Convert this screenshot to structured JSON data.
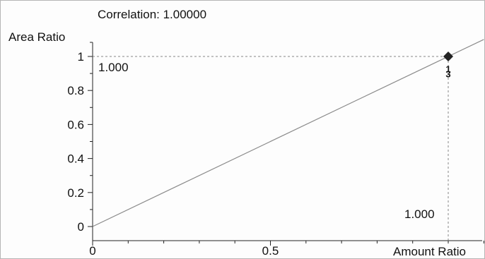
{
  "chart_data": {
    "type": "line",
    "title": "Correlation: 1.00000",
    "ylabel": "Area Ratio",
    "xlabel": "Amount Ratio",
    "xlim": [
      0,
      1.1
    ],
    "ylim": [
      0,
      1
    ],
    "x_ticks": [
      {
        "value": 0,
        "label": "0"
      },
      {
        "value": 0.5,
        "label": "0.5"
      }
    ],
    "y_ticks": [
      {
        "value": 0,
        "label": "0"
      },
      {
        "value": 0.2,
        "label": "0.2"
      },
      {
        "value": 0.4,
        "label": "0.4"
      },
      {
        "value": 0.6,
        "label": "0.6"
      },
      {
        "value": 0.8,
        "label": "0.8"
      },
      {
        "value": 1,
        "label": "1"
      }
    ],
    "fit_line": {
      "slope": 1.0,
      "intercept": 0.0
    },
    "series": [
      {
        "points": [
          {
            "x": 1.0,
            "y": 1.0,
            "marker": "diamond"
          },
          {
            "x": 1.0,
            "y": 0.985,
            "marker": "label",
            "text": "1"
          },
          {
            "x": 1.0,
            "y": 0.968,
            "marker": "label",
            "text": "3"
          }
        ]
      }
    ],
    "crosshair": {
      "x": 1.0,
      "y": 1.0,
      "x_readout": "1.000",
      "y_readout": "1.000"
    },
    "grid": false,
    "colors": {
      "fit_line": "#8a8a8a",
      "axis": "#222222",
      "marker": "#222222",
      "crosshair": "#888888"
    }
  }
}
